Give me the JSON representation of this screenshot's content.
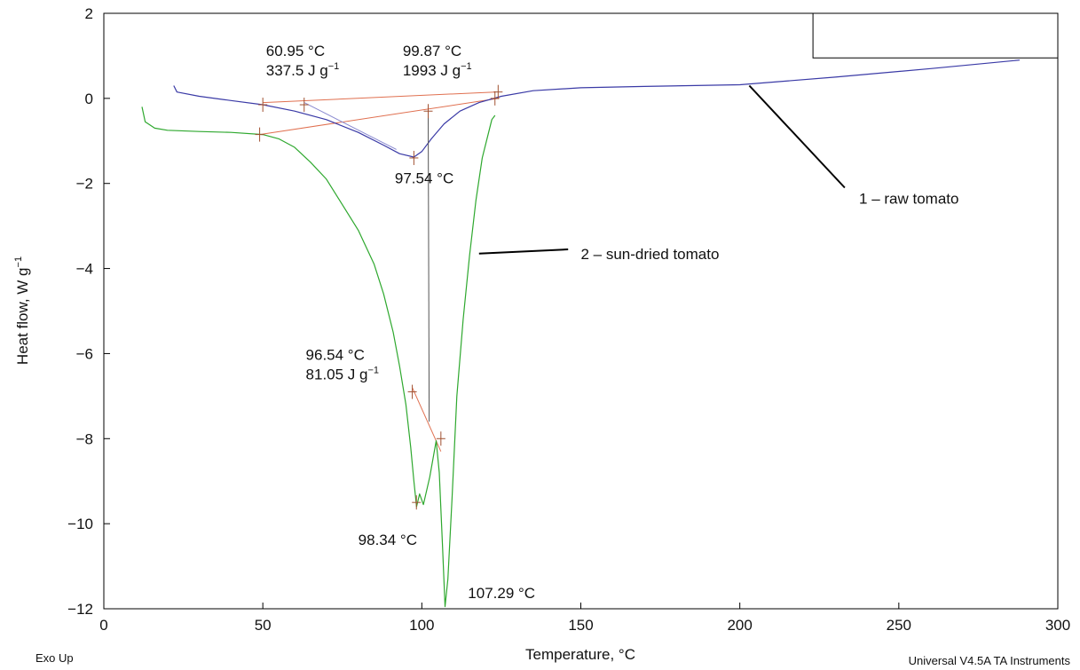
{
  "chart_data": {
    "type": "line",
    "xlabel": "Temperature, °C",
    "ylabel": "Heat flow, W g",
    "ylabel_superscript": "−1",
    "xlim": [
      0,
      300
    ],
    "ylim": [
      -12,
      2
    ],
    "x_ticks": [
      0,
      50,
      100,
      150,
      200,
      250,
      300
    ],
    "x_tick_labels": [
      "0",
      "50",
      "100",
      "150",
      "200",
      "250",
      "300"
    ],
    "y_ticks": [
      2,
      0,
      -2,
      -4,
      -6,
      -8,
      -10,
      -12
    ],
    "y_tick_labels": [
      "2",
      "0",
      "−2",
      "−4",
      "−6",
      "−8",
      "−10",
      "−12"
    ],
    "grid": false,
    "footer_left": "Exo Up",
    "footer_right": "Universal V4.5A TA Instruments",
    "colors": {
      "raw": "#3a3aa6",
      "dried": "#2ea82e",
      "baseline": "#e07050",
      "leader": "#000000"
    },
    "series": [
      {
        "name": "1 – raw tomato",
        "x": [
          22,
          23,
          30,
          40,
          50,
          60,
          70,
          80,
          88,
          93,
          97.5,
          100,
          103,
          107,
          112,
          118,
          125,
          135,
          150,
          170,
          200,
          230,
          260,
          288
        ],
        "y": [
          0.3,
          0.15,
          0.05,
          -0.05,
          -0.15,
          -0.3,
          -0.5,
          -0.8,
          -1.1,
          -1.3,
          -1.38,
          -1.25,
          -0.95,
          -0.6,
          -0.3,
          -0.1,
          0.05,
          0.18,
          0.25,
          0.28,
          0.32,
          0.5,
          0.7,
          0.9
        ]
      },
      {
        "name": "2 – sun-dried tomato",
        "x": [
          12,
          13,
          16,
          20,
          30,
          40,
          50,
          55,
          60,
          65,
          70,
          75,
          80,
          85,
          88,
          91,
          93,
          95,
          96.5,
          97.5,
          98.34,
          99.3,
          100.5,
          102.5,
          104.5,
          105.5,
          106.5,
          107.29,
          108.2,
          109.5,
          111,
          113,
          115,
          117,
          119,
          121,
          122,
          123
        ],
        "y": [
          -0.2,
          -0.55,
          -0.7,
          -0.75,
          -0.78,
          -0.8,
          -0.85,
          -0.95,
          -1.15,
          -1.5,
          -1.9,
          -2.5,
          -3.1,
          -3.9,
          -4.6,
          -5.5,
          -6.3,
          -7.2,
          -8.2,
          -9.0,
          -9.6,
          -9.3,
          -9.55,
          -8.9,
          -8.05,
          -8.8,
          -10.5,
          -11.95,
          -11.3,
          -9.4,
          -7.0,
          -5.2,
          -3.7,
          -2.4,
          -1.4,
          -0.8,
          -0.5,
          -0.4
        ]
      }
    ],
    "baselines": [
      {
        "x": [
          50,
          123
        ],
        "y": [
          -0.1,
          0.15
        ]
      },
      {
        "x": [
          49,
          124
        ],
        "y": [
          -0.85,
          0.0
        ]
      },
      {
        "x": [
          97,
          106
        ],
        "y": [
          -6.8,
          -8.3
        ]
      }
    ],
    "onset_line": {
      "x": [
        63,
        92
      ],
      "y": [
        -0.1,
        -1.2
      ]
    },
    "markers": [
      {
        "x": 50,
        "y": -0.15
      },
      {
        "x": 63,
        "y": -0.15
      },
      {
        "x": 97.5,
        "y": -1.4
      },
      {
        "x": 49,
        "y": -0.85
      },
      {
        "x": 102,
        "y": -0.3
      },
      {
        "x": 123,
        "y": 0.0
      },
      {
        "x": 124,
        "y": 0.15
      },
      {
        "x": 97,
        "y": -6.9
      },
      {
        "x": 106,
        "y": -8.0
      },
      {
        "x": 98.3,
        "y": -9.5
      }
    ],
    "drop_lines": [
      {
        "x": [
          102,
          102.3
        ],
        "y": [
          -0.3,
          -7.6
        ]
      }
    ],
    "annotations": [
      {
        "line1": "60.95 °C",
        "line2_main": "337.5 J g",
        "line2_sup": "−1",
        "x": 51,
        "y": 1.0
      },
      {
        "line1": "99.87 °C",
        "line2_main": "1993 J g",
        "line2_sup": "−1",
        "x": 94,
        "y": 1.0
      },
      {
        "line1": "97.54 °C",
        "x": 91.5,
        "y": -2.0
      },
      {
        "line1": "96.54 °C",
        "line2_main": "81.05 J g",
        "line2_sup": "−1",
        "x": 63.5,
        "y": -6.15
      },
      {
        "line1": "98.34 °C",
        "x": 80,
        "y": -10.5
      },
      {
        "line1": "107.29 °C",
        "x": 114.5,
        "y": -11.75
      }
    ],
    "series_labels": [
      {
        "text": "1 – raw tomato",
        "x": 237.5,
        "y": -2.35,
        "leader": {
          "x": [
            203,
            233
          ],
          "y": [
            0.3,
            -2.1
          ]
        }
      },
      {
        "text": "2 – sun-dried tomato",
        "x": 150,
        "y": -3.65,
        "leader": {
          "x": [
            118,
            146
          ],
          "y": [
            -3.65,
            -3.55
          ]
        }
      }
    ],
    "inset_box": {
      "x": [
        223,
        300
      ],
      "y": [
        0.95,
        2
      ]
    }
  }
}
